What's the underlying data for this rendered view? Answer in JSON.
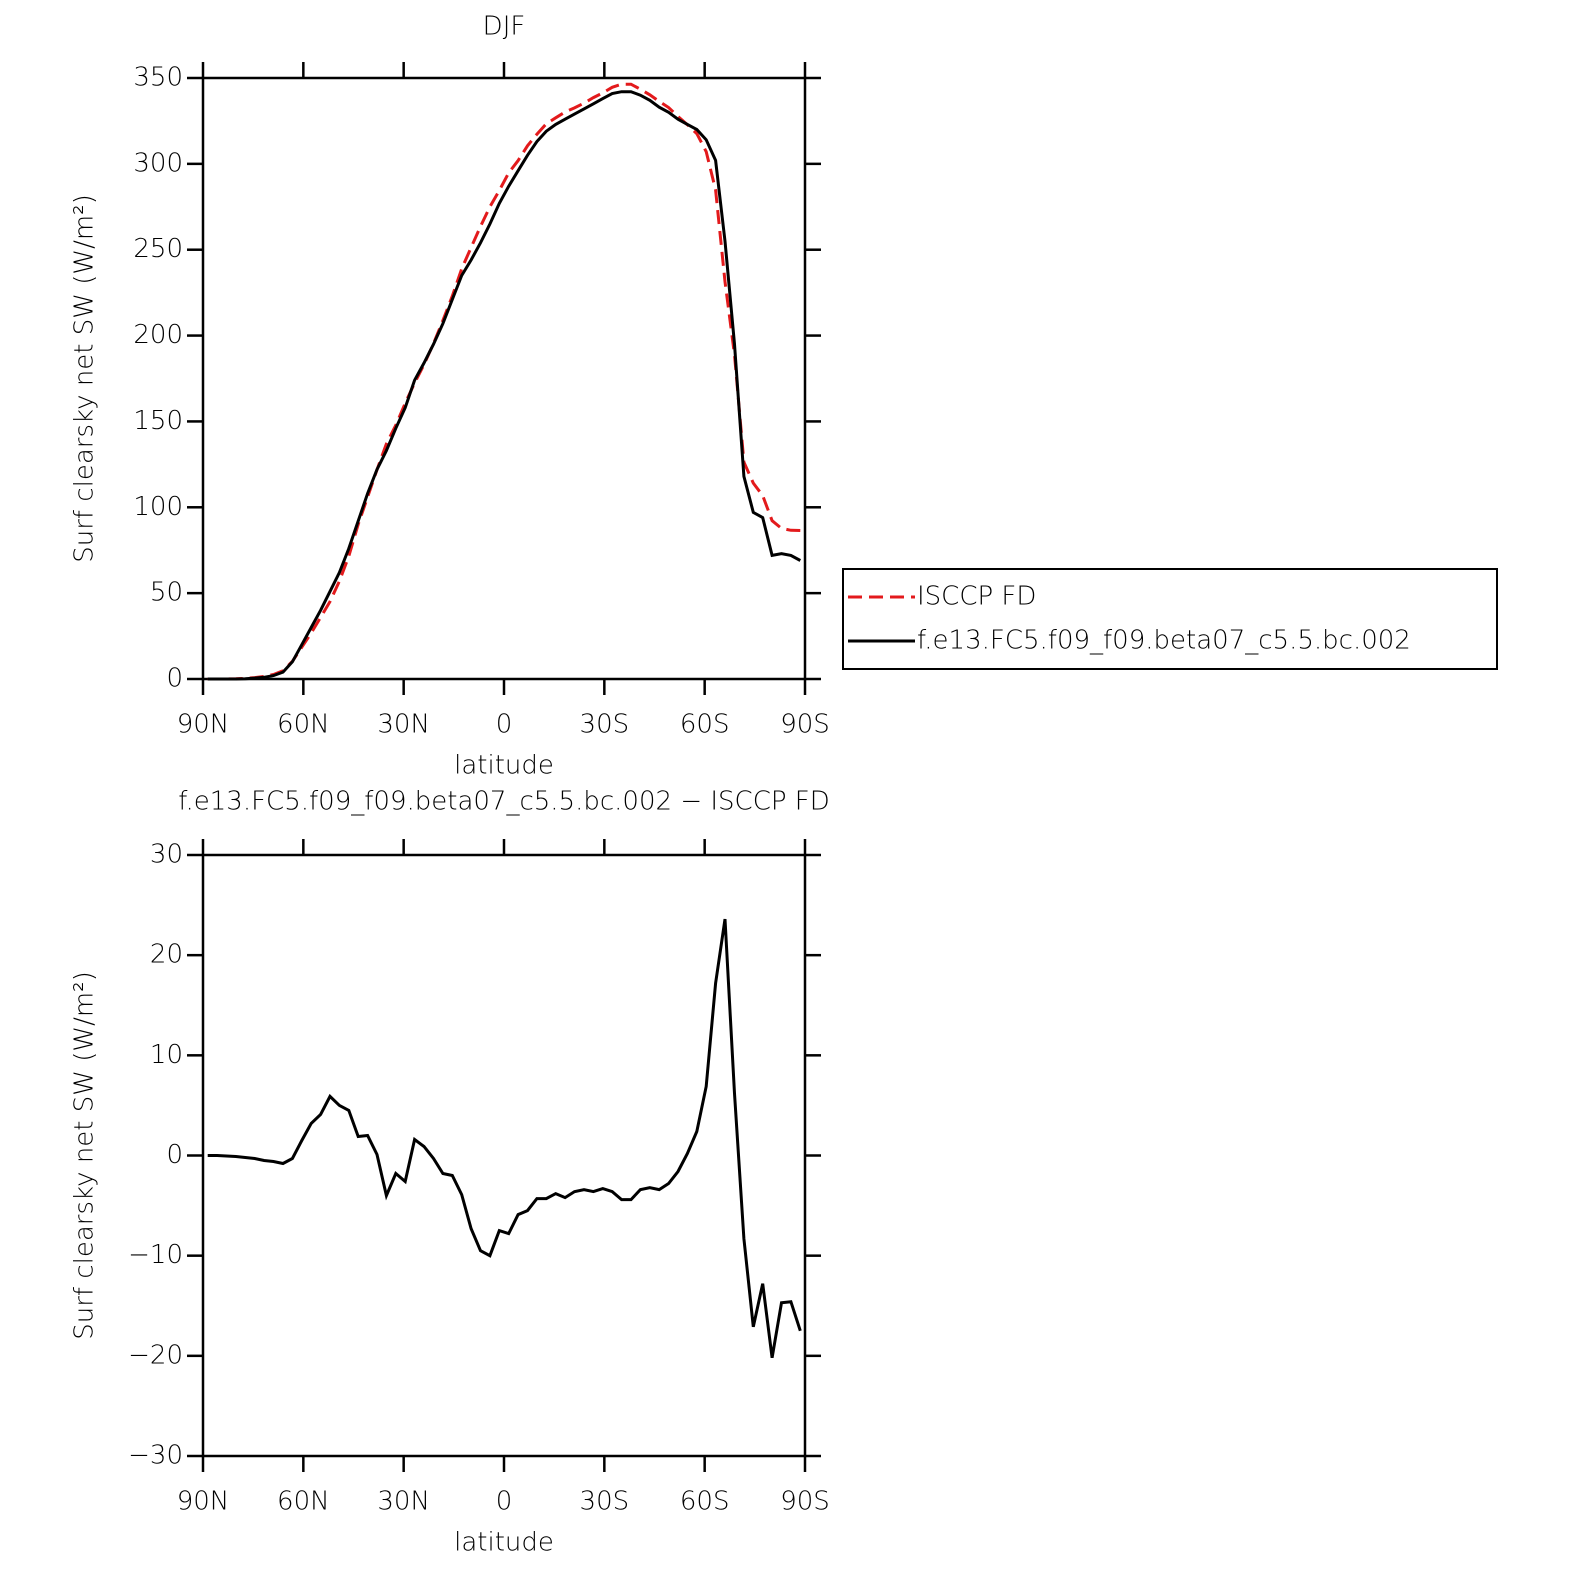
{
  "chart_data": [
    {
      "type": "line",
      "title": "DJF",
      "x_label": "latitude",
      "y_label": "Surf clearsky net SW (W/m²)",
      "x": [
        88.59,
        85.78,
        82.97,
        80.16,
        77.34,
        74.53,
        71.72,
        68.91,
        66.09,
        63.28,
        60.47,
        57.66,
        54.84,
        52.03,
        49.22,
        46.41,
        43.59,
        40.78,
        37.97,
        35.16,
        32.34,
        29.53,
        26.72,
        23.91,
        21.09,
        18.28,
        15.47,
        12.66,
        9.84,
        7.03,
        4.22,
        1.41,
        -1.41,
        -4.22,
        -7.03,
        -9.84,
        -12.66,
        -15.47,
        -18.28,
        -21.09,
        -23.91,
        -26.72,
        -29.53,
        -32.34,
        -35.16,
        -37.97,
        -40.78,
        -43.59,
        -46.41,
        -49.22,
        -52.03,
        -54.84,
        -57.66,
        -60.47,
        -63.28,
        -66.09,
        -68.91,
        -71.72,
        -74.53,
        -77.34,
        -80.16,
        -82.97,
        -85.78,
        -88.59
      ],
      "series": [
        {
          "name": "ISCCP FD",
          "color": "#e31a1c",
          "dashed": true,
          "values": [
            0,
            0,
            0.05,
            0.1,
            0.4,
            0.8,
            1.5,
            2.6,
            4.8,
            10.3,
            18.5,
            26.8,
            35.9,
            45.1,
            57,
            71.5,
            90.1,
            106,
            121.9,
            137,
            147.8,
            160.6,
            172.4,
            183.1,
            195.3,
            208.8,
            223,
            238.9,
            251.3,
            263.5,
            275,
            284.5,
            294.8,
            301.9,
            310.5,
            317.3,
            323.3,
            326.8,
            330.2,
            332.6,
            335.4,
            338.6,
            341.3,
            344.6,
            346.4,
            346.4,
            343.4,
            340.2,
            336.4,
            332.8,
            327.6,
            322.8,
            317.6,
            307.1,
            284.8,
            231.4,
            188.8,
            126.3,
            114.1,
            106.8,
            92.2,
            87.7,
            86.6,
            86.5
          ]
        },
        {
          "name": "f.e13.FC5.f09_f09.beta07_c5.5.bc.002",
          "color": "#000000",
          "dashed": false,
          "values": [
            0,
            0,
            0,
            0,
            0.2,
            0.5,
            1,
            2,
            4,
            10,
            20,
            30,
            40,
            51,
            62,
            76,
            92,
            108,
            122,
            133,
            146,
            158,
            174,
            184,
            195,
            207,
            221,
            235,
            244,
            254,
            265,
            277,
            287,
            296,
            305,
            313,
            319,
            323,
            326,
            329,
            332,
            335,
            338,
            341,
            342,
            342,
            340,
            337,
            333,
            330,
            326,
            323,
            320,
            314,
            302,
            255,
            195,
            118,
            97,
            94,
            72,
            73,
            72,
            69
          ]
        }
      ],
      "xlim": [
        90,
        -90
      ],
      "xticks": [
        {
          "value": 90,
          "label": "90N"
        },
        {
          "value": 60,
          "label": "60N"
        },
        {
          "value": 30,
          "label": "30N"
        },
        0,
        {
          "value": -30,
          "label": "30S"
        },
        {
          "value": -60,
          "label": "60S"
        },
        {
          "value": -90,
          "label": "90S"
        }
      ],
      "ylim": [
        0,
        350
      ],
      "yticks": [
        0,
        50,
        100,
        150,
        200,
        250,
        300,
        350
      ],
      "legend": "right"
    },
    {
      "type": "line",
      "title": "f.e13.FC5.f09_f09.beta07_c5.5.bc.002 − ISCCP FD",
      "x_label": "latitude",
      "y_label": "Surf clearsky net SW (W/m²)",
      "x": [
        88.59,
        85.78,
        82.97,
        80.16,
        77.34,
        74.53,
        71.72,
        68.91,
        66.09,
        63.28,
        60.47,
        57.66,
        54.84,
        52.03,
        49.22,
        46.41,
        43.59,
        40.78,
        37.97,
        35.16,
        32.34,
        29.53,
        26.72,
        23.91,
        21.09,
        18.28,
        15.47,
        12.66,
        9.84,
        7.03,
        4.22,
        1.41,
        -1.41,
        -4.22,
        -7.03,
        -9.84,
        -12.66,
        -15.47,
        -18.28,
        -21.09,
        -23.91,
        -26.72,
        -29.53,
        -32.34,
        -35.16,
        -37.97,
        -40.78,
        -43.59,
        -46.41,
        -49.22,
        -52.03,
        -54.84,
        -57.66,
        -60.47,
        -63.28,
        -66.09,
        -68.91,
        -71.72,
        -74.53,
        -77.34,
        -80.16,
        -82.97,
        -85.78,
        -88.59
      ],
      "values": [
        0,
        0,
        -0.05,
        -0.1,
        -0.2,
        -0.3,
        -0.5,
        -0.6,
        -0.8,
        -0.3,
        1.5,
        3.2,
        4.1,
        5.9,
        5,
        4.5,
        1.9,
        2,
        0.1,
        -4,
        -1.8,
        -2.6,
        1.6,
        0.9,
        -0.3,
        -1.8,
        -2,
        -3.9,
        -7.3,
        -9.5,
        -10,
        -7.5,
        -7.8,
        -5.9,
        -5.5,
        -4.3,
        -4.3,
        -3.8,
        -4.2,
        -3.6,
        -3.4,
        -3.6,
        -3.3,
        -3.6,
        -4.4,
        -4.4,
        -3.4,
        -3.2,
        -3.4,
        -2.8,
        -1.6,
        0.2,
        2.4,
        6.9,
        17.2,
        23.6,
        6.2,
        -8.3,
        -17.1,
        -12.8,
        -20.2,
        -14.7,
        -14.6,
        -17.5
      ],
      "color": "#000000",
      "xlim": [
        90,
        -90
      ],
      "xticks": [
        {
          "value": 90,
          "label": "90N"
        },
        {
          "value": 60,
          "label": "60N"
        },
        {
          "value": 30,
          "label": "30N"
        },
        0,
        {
          "value": -30,
          "label": "30S"
        },
        {
          "value": -60,
          "label": "60S"
        },
        {
          "value": -90,
          "label": "90S"
        }
      ],
      "ylim": [
        -30,
        30
      ],
      "yticks": [
        {
          "value": -30,
          "label": "−30"
        },
        {
          "value": -20,
          "label": "−20"
        },
        {
          "value": -10,
          "label": "−10"
        },
        0,
        10,
        20,
        30
      ]
    }
  ]
}
